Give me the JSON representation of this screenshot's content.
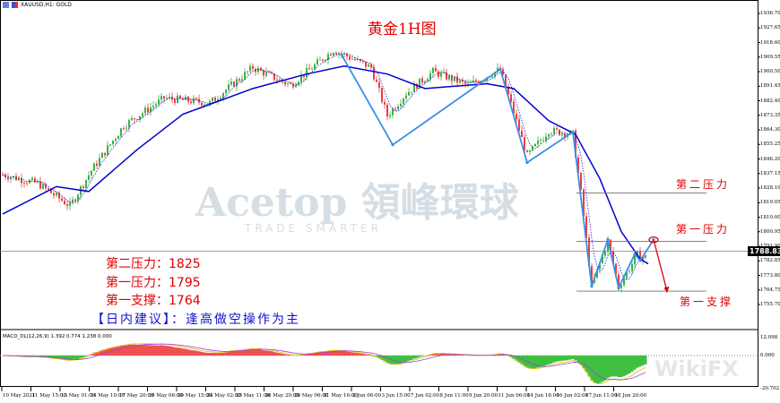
{
  "window": {
    "symbol_label": "XAUUSD,H1:  GOLD"
  },
  "title": "黄金1H图",
  "watermark": {
    "brand": "Acetop 領峰環球",
    "tagline": "TRADE SMARTER",
    "site": "WikiFX"
  },
  "levels": {
    "resistance2_label": "第二压力",
    "resistance1_label": "第一压力",
    "support1_label": "第一支撑"
  },
  "notes": [
    {
      "label": "第二压力：",
      "value": "1825"
    },
    {
      "label": "第一压力：",
      "value": "1795"
    },
    {
      "label": "第一支撑：",
      "value": "1764"
    }
  ],
  "advice": "【日内建议】：逢高做空操作为主",
  "macd": {
    "label": "MACD_DL(12,26,9) 1.392 0.774 1.238 0.000",
    "yticks": [
      "12.098",
      "0.000",
      "-20.702"
    ]
  },
  "colors": {
    "bull": "#3cb043",
    "bear": "#f03c3c",
    "ma": "#0000d0",
    "zigzag": "#3a8ee6",
    "level": "#707070",
    "annotation": "#e00000",
    "advice": "#1010d0"
  },
  "chart_data": {
    "type": "candlestick",
    "symbol": "XAUUSD",
    "timeframe": "H1",
    "ylim": [
      1755.7,
      1936.7
    ],
    "yticks": [
      "1936.70",
      "1927.65",
      "1918.60",
      "1909.55",
      "1900.50",
      "1891.45",
      "1882.40",
      "1873.35",
      "1864.30",
      "1855.25",
      "1846.20",
      "1837.15",
      "1828.10",
      "1819.05",
      "1810.00",
      "1800.95",
      "1791.90",
      "1782.85",
      "1773.80",
      "1764.75",
      "1755.70"
    ],
    "current_price": "1788.83",
    "xticks": [
      "10 May 2021",
      "11 May 15:00",
      "13 May 01:00",
      "14 May 10:00",
      "17 May 20:00",
      "19 May 06:00",
      "20 May 15:00",
      "24 May 02:00",
      "25 May 11:00",
      "26 May 20:00",
      "28 May 06:00",
      "31 May 16:00",
      "2 Jun 06:00",
      "3 Jun 15:00",
      "7 Jun 02:00",
      "8 Jun 11:00",
      "9 Jun 20:00",
      "11 Jun 06:00",
      "14 Jun 16:00",
      "16 Jun 02:00",
      "17 Jun 11:00",
      "18 Jun 20:00"
    ],
    "price_path": [
      [
        0,
        1836.5
      ],
      [
        13,
        1831
      ],
      [
        25,
        1817
      ],
      [
        33,
        1839
      ],
      [
        45,
        1867
      ],
      [
        60,
        1884
      ],
      [
        77,
        1881
      ],
      [
        93,
        1903
      ],
      [
        107,
        1892
      ],
      [
        123,
        1914
      ],
      [
        137,
        1903
      ],
      [
        143,
        1873
      ],
      [
        150,
        1887
      ],
      [
        160,
        1900.5
      ],
      [
        173,
        1892
      ],
      [
        185,
        1902
      ],
      [
        195,
        1848
      ],
      [
        203,
        1864
      ],
      [
        212,
        1861.5
      ],
      [
        215,
        1825
      ],
      [
        219,
        1767
      ],
      [
        225,
        1795
      ],
      [
        229,
        1767
      ],
      [
        236,
        1786.5
      ],
      [
        238,
        1785
      ]
    ],
    "moving_average": [
      [
        0,
        1812
      ],
      [
        20,
        1829
      ],
      [
        32,
        1826
      ],
      [
        50,
        1852
      ],
      [
        67,
        1874
      ],
      [
        93,
        1890
      ],
      [
        113,
        1899
      ],
      [
        127,
        1904
      ],
      [
        143,
        1899
      ],
      [
        157,
        1890
      ],
      [
        180,
        1893
      ],
      [
        190,
        1890
      ],
      [
        203,
        1870
      ],
      [
        213,
        1861.5
      ],
      [
        222,
        1834
      ],
      [
        230,
        1801
      ],
      [
        237,
        1784
      ],
      [
        240,
        1781
      ]
    ],
    "zigzag": [
      [
        126,
        1911
      ],
      [
        145,
        1855
      ],
      [
        185,
        1902
      ],
      [
        195,
        1844
      ],
      [
        212,
        1863
      ],
      [
        219,
        1767
      ],
      [
        225,
        1796
      ],
      [
        229,
        1766
      ],
      [
        235,
        1787
      ],
      [
        237,
        1783
      ],
      [
        242,
        1796
      ]
    ],
    "horizontal_levels": [
      1825,
      1795,
      1764
    ],
    "forecast": {
      "from": [
        242,
        1796
      ],
      "to": [
        247,
        1764
      ]
    }
  }
}
